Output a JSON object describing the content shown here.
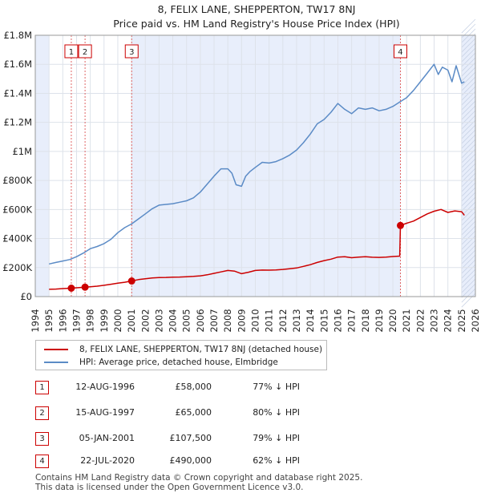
{
  "chart_data": {
    "type": "line",
    "title": "8, FELIX LANE, SHEPPERTON, TW17 8NJ",
    "subtitle": "Price paid vs. HM Land Registry's House Price Index (HPI)",
    "xlabel": "",
    "ylabel": "",
    "xlim": [
      1994,
      2026
    ],
    "ylim": [
      0,
      1800000
    ],
    "x_ticks": [
      "1994",
      "1995",
      "1996",
      "1997",
      "1998",
      "1999",
      "2000",
      "2001",
      "2002",
      "2003",
      "2004",
      "2005",
      "2006",
      "2007",
      "2008",
      "2009",
      "2010",
      "2011",
      "2012",
      "2013",
      "2014",
      "2015",
      "2016",
      "2017",
      "2018",
      "2019",
      "2020",
      "2021",
      "2022",
      "2023",
      "2024",
      "2025",
      "2026"
    ],
    "y_ticks": [
      {
        "value": 0,
        "label": "£0"
      },
      {
        "value": 200000,
        "label": "£200K"
      },
      {
        "value": 400000,
        "label": "£400K"
      },
      {
        "value": 600000,
        "label": "£600K"
      },
      {
        "value": 800000,
        "label": "£800K"
      },
      {
        "value": 1000000,
        "label": "£1M"
      },
      {
        "value": 1200000,
        "label": "£1.2M"
      },
      {
        "value": 1400000,
        "label": "£1.4M"
      },
      {
        "value": 1600000,
        "label": "£1.6M"
      },
      {
        "value": 1800000,
        "label": "£1.8M"
      }
    ],
    "series": [
      {
        "name": "8, FELIX LANE, SHEPPERTON, TW17 8NJ (detached house)",
        "color": "#cc0000",
        "x": [
          1995.0,
          1995.5,
          1996.0,
          1996.62,
          1997.0,
          1997.62,
          1998.0,
          1998.5,
          1999.0,
          1999.5,
          2000.0,
          2000.5,
          2001.01,
          2001.5,
          2002.0,
          2002.5,
          2003.0,
          2003.5,
          2004.0,
          2004.5,
          2005.0,
          2005.5,
          2006.0,
          2006.5,
          2007.0,
          2007.5,
          2008.0,
          2008.5,
          2009.0,
          2009.5,
          2010.0,
          2010.5,
          2011.0,
          2011.5,
          2012.0,
          2012.5,
          2013.0,
          2013.5,
          2014.0,
          2014.5,
          2015.0,
          2015.5,
          2016.0,
          2016.5,
          2017.0,
          2017.5,
          2018.0,
          2018.5,
          2019.0,
          2019.5,
          2020.0,
          2020.5,
          2020.55,
          2021.0,
          2021.5,
          2022.0,
          2022.5,
          2023.0,
          2023.5,
          2024.0,
          2024.5,
          2025.0,
          2025.2
        ],
        "y": [
          50000,
          52000,
          55000,
          58000,
          61000,
          65000,
          68000,
          72000,
          78000,
          85000,
          92000,
          99000,
          107500,
          117000,
          123000,
          128000,
          131000,
          132000,
          134000,
          135000,
          137000,
          139000,
          143000,
          150000,
          160000,
          170000,
          180000,
          175000,
          158000,
          168000,
          180000,
          183000,
          182000,
          184000,
          187000,
          192000,
          197000,
          208000,
          220000,
          235000,
          248000,
          258000,
          272000,
          275000,
          268000,
          272000,
          275000,
          271000,
          270000,
          272000,
          276000,
          279000,
          490000,
          505000,
          520000,
          545000,
          570000,
          588000,
          600000,
          580000,
          590000,
          585000,
          560000
        ]
      },
      {
        "name": "HPI: Average price, detached house, Elmbridge",
        "color": "#5b8bc6",
        "x": [
          1995.0,
          1995.5,
          1996.0,
          1996.5,
          1997.0,
          1997.5,
          1998.0,
          1998.5,
          1999.0,
          1999.5,
          2000.0,
          2000.5,
          2001.0,
          2001.5,
          2002.0,
          2002.5,
          2003.0,
          2003.5,
          2004.0,
          2004.5,
          2005.0,
          2005.5,
          2006.0,
          2006.5,
          2007.0,
          2007.5,
          2008.0,
          2008.3,
          2008.6,
          2009.0,
          2009.3,
          2009.6,
          2010.0,
          2010.5,
          2011.0,
          2011.5,
          2012.0,
          2012.5,
          2013.0,
          2013.5,
          2014.0,
          2014.5,
          2015.0,
          2015.5,
          2016.0,
          2016.5,
          2017.0,
          2017.5,
          2018.0,
          2018.5,
          2019.0,
          2019.5,
          2020.0,
          2020.5,
          2021.0,
          2021.5,
          2022.0,
          2022.5,
          2023.0,
          2023.3,
          2023.6,
          2024.0,
          2024.3,
          2024.6,
          2025.0,
          2025.2
        ],
        "y": [
          225000,
          235000,
          245000,
          255000,
          275000,
          300000,
          330000,
          345000,
          365000,
          395000,
          440000,
          475000,
          500000,
          535000,
          570000,
          605000,
          630000,
          635000,
          640000,
          650000,
          660000,
          680000,
          720000,
          775000,
          830000,
          880000,
          880000,
          850000,
          770000,
          760000,
          830000,
          860000,
          890000,
          925000,
          920000,
          930000,
          950000,
          975000,
          1010000,
          1060000,
          1120000,
          1190000,
          1220000,
          1270000,
          1330000,
          1290000,
          1260000,
          1300000,
          1290000,
          1300000,
          1280000,
          1290000,
          1310000,
          1340000,
          1370000,
          1420000,
          1480000,
          1540000,
          1600000,
          1530000,
          1580000,
          1560000,
          1480000,
          1590000,
          1470000,
          1480000
        ]
      }
    ],
    "markers": [
      {
        "id": "1",
        "x": 1996.62,
        "y": 58000
      },
      {
        "id": "2",
        "x": 1997.62,
        "y": 65000
      },
      {
        "id": "3",
        "x": 2001.01,
        "y": 107500
      },
      {
        "id": "4",
        "x": 2020.55,
        "y": 490000
      }
    ],
    "shaded_ranges": [
      {
        "from": 1994,
        "to": 1995
      },
      {
        "from": 2001.01,
        "to": 2020.55
      },
      {
        "from": 2025,
        "to": 2026
      }
    ]
  },
  "legend": {
    "items": [
      {
        "label": "8, FELIX LANE, SHEPPERTON, TW17 8NJ (detached house)",
        "color": "#cc0000"
      },
      {
        "label": "HPI: Average price, detached house, Elmbridge",
        "color": "#5b8bc6"
      }
    ]
  },
  "sales": [
    {
      "id": "1",
      "date": "12-AUG-1996",
      "price": "£58,000",
      "hpi": "77% ↓ HPI"
    },
    {
      "id": "2",
      "date": "15-AUG-1997",
      "price": "£65,000",
      "hpi": "80% ↓ HPI"
    },
    {
      "id": "3",
      "date": "05-JAN-2001",
      "price": "£107,500",
      "hpi": "79% ↓ HPI"
    },
    {
      "id": "4",
      "date": "22-JUL-2020",
      "price": "£490,000",
      "hpi": "62% ↓ HPI"
    }
  ],
  "footer": {
    "line1": "Contains HM Land Registry data © Crown copyright and database right 2025.",
    "line2": "This data is licensed under the Open Government Licence v3.0."
  }
}
